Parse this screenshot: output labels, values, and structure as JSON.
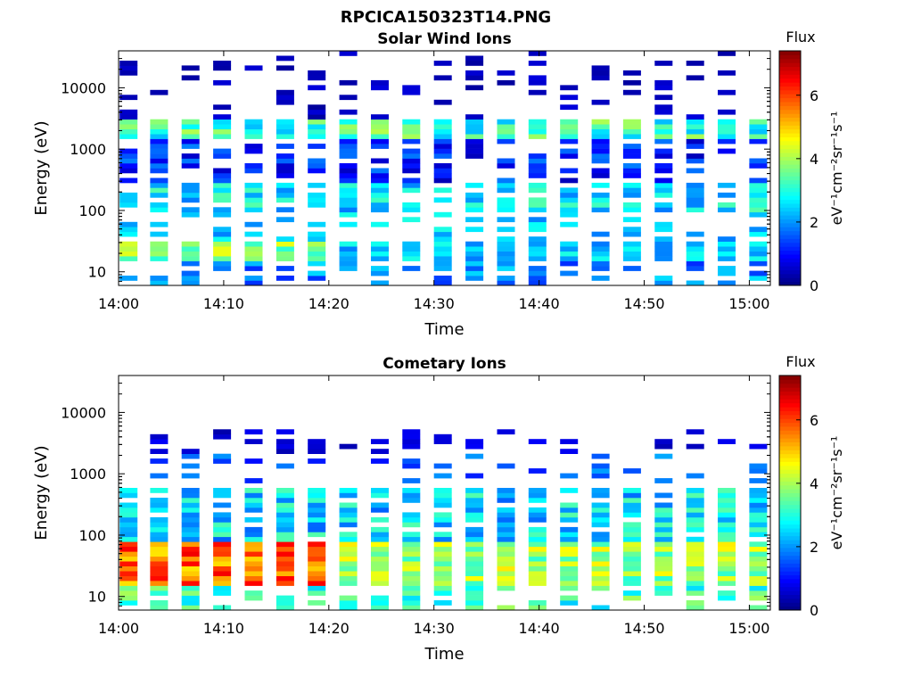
{
  "figure": {
    "title": "RPCICA150323T14.PNG"
  },
  "colormap": {
    "name": "jet",
    "stops": [
      "#00007f",
      "#0000ff",
      "#007fff",
      "#00ffff",
      "#7fff7f",
      "#ffff00",
      "#ff7f00",
      "#ff0000",
      "#7f0000"
    ]
  },
  "chart_data": [
    {
      "type": "heatmap",
      "title": "Solar Wind Ions",
      "xlabel": "Time",
      "ylabel": "Energy (eV)",
      "y_scale": "log",
      "xlim": [
        "14:00",
        "15:02"
      ],
      "ylim": [
        6,
        40000
      ],
      "x_ticks": [
        "14:00",
        "14:10",
        "14:20",
        "14:30",
        "14:40",
        "14:50",
        "15:00"
      ],
      "y_ticks": [
        "10",
        "100",
        "1000",
        "10000"
      ],
      "colorbar": {
        "label": "Flux",
        "units": "eV⁻¹cm⁻²sr⁻¹s⁻¹",
        "range": [
          0,
          7.4
        ],
        "ticks": [
          "0",
          "2",
          "4",
          "6"
        ]
      },
      "scan_start_times": [
        "14:00",
        "14:03",
        "14:06",
        "14:09",
        "14:12",
        "14:15",
        "14:18",
        "14:21",
        "14:24",
        "14:27",
        "14:30",
        "14:33",
        "14:36",
        "14:39",
        "14:42",
        "14:45",
        "14:48",
        "14:51",
        "14:54",
        "14:57",
        "15:00"
      ],
      "description_of_features": "Intermittent energy sweeps every ~3 min; flux peaks ~3-4 near 1500-3000 eV and ~3-4.5 near 15-30 eV in early scans; sparse low-flux (~0.5) returns above 3000 eV",
      "bands": [
        {
          "e_min": 1500,
          "e_max": 3000,
          "flux": 3.0
        },
        {
          "e_min": 100,
          "e_max": 300,
          "flux": 2.6
        },
        {
          "e_min": 15,
          "e_max": 30,
          "flux": 3.3
        },
        {
          "e_min": 3000,
          "e_max": 40000,
          "flux": 0.4
        }
      ]
    },
    {
      "type": "heatmap",
      "title": "Cometary Ions",
      "xlabel": "Time",
      "ylabel": "Energy (eV)",
      "y_scale": "log",
      "xlim": [
        "14:00",
        "15:02"
      ],
      "ylim": [
        6,
        40000
      ],
      "x_ticks": [
        "14:00",
        "14:10",
        "14:20",
        "14:30",
        "14:40",
        "14:50",
        "15:00"
      ],
      "y_ticks": [
        "10",
        "100",
        "1000",
        "10000"
      ],
      "colorbar": {
        "label": "Flux",
        "units": "eV⁻¹cm⁻²sr⁻¹s⁻¹",
        "range": [
          0,
          7.4
        ],
        "ticks": [
          "0",
          "2",
          "4",
          "6"
        ]
      },
      "scan_start_times": [
        "14:00",
        "14:03",
        "14:06",
        "14:09",
        "14:12",
        "14:15",
        "14:18",
        "14:21",
        "14:24",
        "14:27",
        "14:30",
        "14:33",
        "14:36",
        "14:39",
        "14:42",
        "14:45",
        "14:48",
        "14:51",
        "14:54",
        "14:57",
        "15:00"
      ],
      "description_of_features": "Strongest flux (~5-6.5) at 15-80 eV during 14:00-14:20, decaying to ~3-4 later; sparse low-flux lines near 2000-4000 eV",
      "bands": [
        {
          "e_min": 15,
          "e_max": 80,
          "flux": 5.5
        },
        {
          "e_min": 80,
          "e_max": 600,
          "flux": 3.0
        },
        {
          "e_min": 2000,
          "e_max": 5000,
          "flux": 0.6
        }
      ]
    }
  ]
}
